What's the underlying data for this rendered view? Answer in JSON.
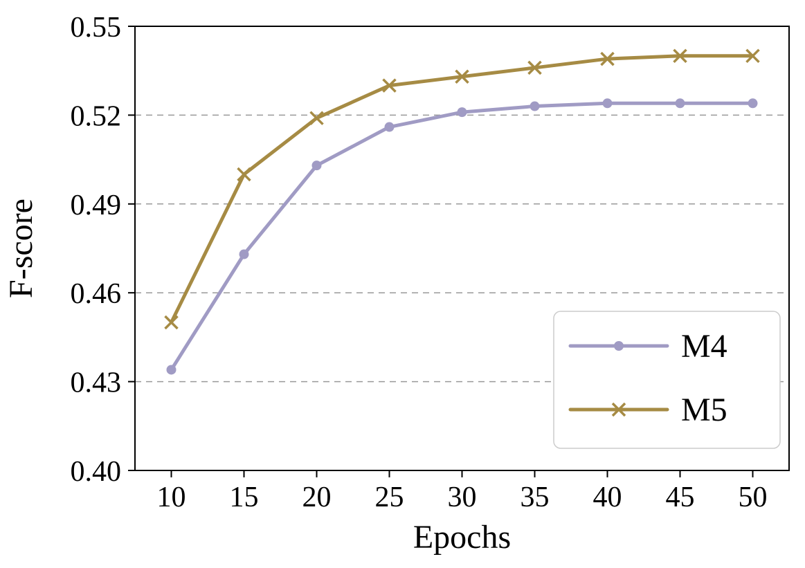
{
  "chart_data": {
    "type": "line",
    "title": "",
    "xlabel": "Epochs",
    "ylabel": "F-score",
    "x": [
      10,
      15,
      20,
      25,
      30,
      35,
      40,
      45,
      50
    ],
    "series": [
      {
        "name": "M4",
        "marker": "circle",
        "color": "#a09bc4",
        "values": [
          0.434,
          0.473,
          0.503,
          0.516,
          0.521,
          0.523,
          0.524,
          0.524,
          0.524
        ]
      },
      {
        "name": "M5",
        "marker": "x",
        "color": "#a68b44",
        "values": [
          0.45,
          0.5,
          0.519,
          0.53,
          0.533,
          0.536,
          0.539,
          0.54,
          0.54
        ]
      }
    ],
    "xlim": [
      7.5,
      52.5
    ],
    "ylim": [
      0.4,
      0.55
    ],
    "xticks": [
      10,
      15,
      20,
      25,
      30,
      35,
      40,
      45,
      50
    ],
    "xtick_labels": [
      "10",
      "15",
      "20",
      "25",
      "30",
      "35",
      "40",
      "45",
      "50"
    ],
    "yticks": [
      0.4,
      0.43,
      0.46,
      0.49,
      0.52,
      0.55
    ],
    "ytick_labels": [
      "0.40",
      "0.43",
      "0.46",
      "0.49",
      "0.52",
      "0.55"
    ],
    "grid": "horizontal-dashed",
    "legend_position": "lower right",
    "legend": [
      "M4",
      "M5"
    ]
  },
  "colors": {
    "m4": "#a09bc4",
    "m5": "#a68b44",
    "grid": "#999999",
    "axis": "#000000",
    "legend_border": "#cccccc",
    "background": "#ffffff"
  }
}
